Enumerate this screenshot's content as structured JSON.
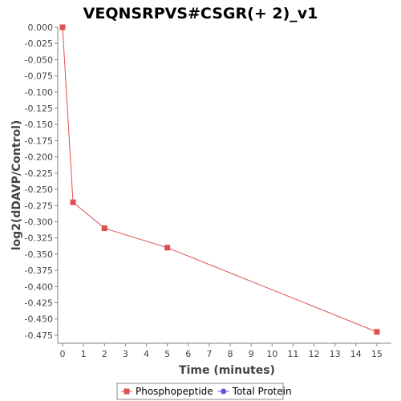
{
  "chart_data": {
    "type": "line",
    "title": "VEQNSRPVS#CSGR(+ 2)_v1",
    "xlabel": "Time (minutes)",
    "ylabel": "log2(dDAVP/Control)",
    "xlim": [
      0,
      15.5
    ],
    "ylim": [
      -0.4875,
      0.0
    ],
    "xticks": [
      "0",
      "1",
      "2",
      "3",
      "4",
      "5",
      "6",
      "7",
      "8",
      "9",
      "10",
      "11",
      "12",
      "13",
      "14",
      "15"
    ],
    "yticks": [
      "0.000",
      "-0.025",
      "-0.050",
      "-0.075",
      "-0.100",
      "-0.125",
      "-0.150",
      "-0.175",
      "-0.200",
      "-0.225",
      "-0.250",
      "-0.275",
      "-0.300",
      "-0.325",
      "-0.350",
      "-0.375",
      "-0.400",
      "-0.425",
      "-0.450",
      "-0.475"
    ],
    "grid": false,
    "legend_position": "bottom",
    "series": [
      {
        "name": "Phosphopeptide",
        "color": "#e05050",
        "marker": "square",
        "x": [
          0,
          0.5,
          2,
          5,
          15
        ],
        "y": [
          0.0,
          -0.27,
          -0.31,
          -0.34,
          -0.47
        ]
      },
      {
        "name": "Total Protein",
        "color": "#5a5aef",
        "marker": "circle",
        "x": [],
        "y": []
      }
    ]
  }
}
